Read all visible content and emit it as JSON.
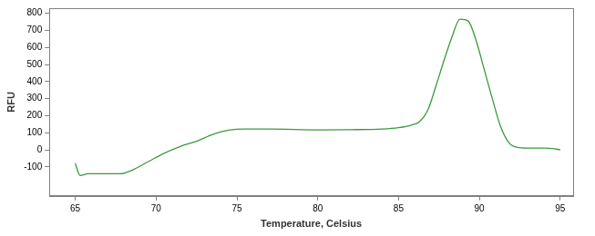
{
  "chart_data": {
    "type": "line",
    "x_label": "Temperature, Celsius",
    "y_label": "RFU",
    "color": "#3a9a3a",
    "grid": false,
    "x": [
      65,
      65.3,
      65.8,
      67,
      67.8,
      68.5,
      69.5,
      70.5,
      71.5,
      72.5,
      73.5,
      74.5,
      75.5,
      77,
      80,
      82,
      84,
      85,
      85.8,
      86.3,
      86.8,
      87.3,
      87.8,
      88.3,
      88.8,
      89.3,
      89.8,
      90.3,
      90.8,
      91.3,
      91.8,
      92.3,
      93,
      94,
      94.5,
      95
    ],
    "values": [
      -80,
      -150,
      -140,
      -140,
      -140,
      -120,
      -70,
      -20,
      20,
      50,
      90,
      115,
      122,
      122,
      117,
      118,
      122,
      130,
      145,
      165,
      230,
      370,
      520,
      660,
      765,
      755,
      640,
      470,
      300,
      140,
      45,
      15,
      10,
      10,
      8,
      0
    ],
    "xlim": [
      63.4,
      95.8
    ],
    "xticks": [
      65,
      70,
      75,
      80,
      85,
      90,
      95
    ],
    "ylim": [
      -270,
      830
    ],
    "yticks": [
      -100,
      0,
      100,
      200,
      300,
      400,
      500,
      600,
      700,
      800
    ]
  }
}
